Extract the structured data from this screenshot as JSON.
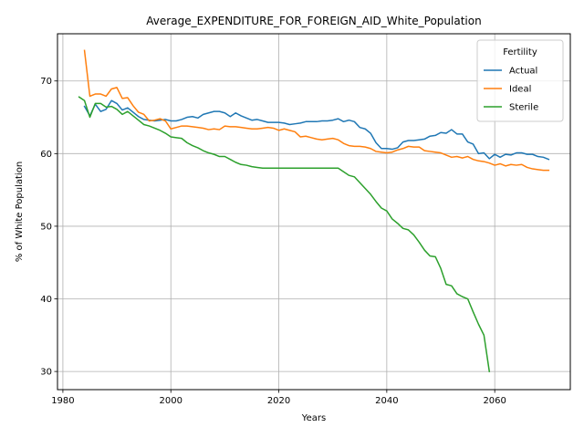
{
  "chart_data": {
    "type": "line",
    "title": "Average_EXPENDITURE_FOR_FOREIGN_AID_White_Population",
    "xlabel": "Years",
    "ylabel": "% of White Population",
    "xlim": [
      1979,
      2074
    ],
    "ylim": [
      27.5,
      76.5
    ],
    "xticks": [
      1980,
      2000,
      2020,
      2040,
      2060
    ],
    "yticks": [
      30,
      40,
      50,
      60,
      70
    ],
    "grid": true,
    "legend": {
      "title": "Fertility",
      "placement": "top-right"
    },
    "series": [
      {
        "name": "Actual",
        "color": "#1f77b4",
        "points": [
          [
            1984,
            66.5
          ],
          [
            1985,
            65.2
          ],
          [
            1986,
            66.8
          ],
          [
            1987,
            65.8
          ],
          [
            1988,
            66.1
          ],
          [
            1989,
            67.3
          ],
          [
            1990,
            66.9
          ],
          [
            1991,
            66.0
          ],
          [
            1992,
            66.3
          ],
          [
            1993,
            65.7
          ],
          [
            1994,
            65.1
          ],
          [
            1995,
            64.7
          ],
          [
            1996,
            64.6
          ],
          [
            1997,
            64.5
          ],
          [
            1998,
            64.6
          ],
          [
            1999,
            64.7
          ],
          [
            2000,
            64.5
          ],
          [
            2001,
            64.5
          ],
          [
            2002,
            64.7
          ],
          [
            2003,
            65.0
          ],
          [
            2004,
            65.1
          ],
          [
            2005,
            64.9
          ],
          [
            2006,
            65.4
          ],
          [
            2007,
            65.6
          ],
          [
            2008,
            65.8
          ],
          [
            2009,
            65.8
          ],
          [
            2010,
            65.6
          ],
          [
            2011,
            65.1
          ],
          [
            2012,
            65.6
          ],
          [
            2013,
            65.2
          ],
          [
            2014,
            64.9
          ],
          [
            2015,
            64.6
          ],
          [
            2016,
            64.7
          ],
          [
            2017,
            64.5
          ],
          [
            2018,
            64.3
          ],
          [
            2019,
            64.3
          ],
          [
            2020,
            64.3
          ],
          [
            2021,
            64.2
          ],
          [
            2022,
            64.0
          ],
          [
            2023,
            64.1
          ],
          [
            2024,
            64.2
          ],
          [
            2025,
            64.4
          ],
          [
            2026,
            64.4
          ],
          [
            2027,
            64.4
          ],
          [
            2028,
            64.5
          ],
          [
            2029,
            64.5
          ],
          [
            2030,
            64.6
          ],
          [
            2031,
            64.8
          ],
          [
            2032,
            64.4
          ],
          [
            2033,
            64.6
          ],
          [
            2034,
            64.4
          ],
          [
            2035,
            63.6
          ],
          [
            2036,
            63.4
          ],
          [
            2037,
            62.8
          ],
          [
            2038,
            61.5
          ],
          [
            2039,
            60.7
          ],
          [
            2040,
            60.7
          ],
          [
            2041,
            60.6
          ],
          [
            2042,
            60.8
          ],
          [
            2043,
            61.6
          ],
          [
            2044,
            61.8
          ],
          [
            2045,
            61.8
          ],
          [
            2046,
            61.9
          ],
          [
            2047,
            62.0
          ],
          [
            2048,
            62.4
          ],
          [
            2049,
            62.5
          ],
          [
            2050,
            62.9
          ],
          [
            2051,
            62.8
          ],
          [
            2052,
            63.3
          ],
          [
            2053,
            62.7
          ],
          [
            2054,
            62.7
          ],
          [
            2055,
            61.6
          ],
          [
            2056,
            61.3
          ],
          [
            2057,
            60.0
          ],
          [
            2058,
            60.1
          ],
          [
            2059,
            59.3
          ],
          [
            2060,
            59.9
          ],
          [
            2061,
            59.5
          ],
          [
            2062,
            59.9
          ],
          [
            2063,
            59.8
          ],
          [
            2064,
            60.1
          ],
          [
            2065,
            60.1
          ],
          [
            2066,
            59.9
          ],
          [
            2067,
            59.9
          ],
          [
            2068,
            59.6
          ],
          [
            2069,
            59.5
          ],
          [
            2070,
            59.2
          ]
        ]
      },
      {
        "name": "Ideal",
        "color": "#ff7f0e",
        "points": [
          [
            1984,
            74.2
          ],
          [
            1985,
            67.9
          ],
          [
            1986,
            68.2
          ],
          [
            1987,
            68.2
          ],
          [
            1988,
            67.9
          ],
          [
            1989,
            68.9
          ],
          [
            1990,
            69.1
          ],
          [
            1991,
            67.6
          ],
          [
            1992,
            67.7
          ],
          [
            1993,
            66.6
          ],
          [
            1994,
            65.7
          ],
          [
            1995,
            65.4
          ],
          [
            1996,
            64.5
          ],
          [
            1997,
            64.6
          ],
          [
            1998,
            64.8
          ],
          [
            1999,
            64.5
          ],
          [
            2000,
            63.4
          ],
          [
            2001,
            63.6
          ],
          [
            2002,
            63.8
          ],
          [
            2003,
            63.8
          ],
          [
            2004,
            63.7
          ],
          [
            2005,
            63.6
          ],
          [
            2006,
            63.5
          ],
          [
            2007,
            63.3
          ],
          [
            2008,
            63.4
          ],
          [
            2009,
            63.3
          ],
          [
            2010,
            63.8
          ],
          [
            2011,
            63.7
          ],
          [
            2012,
            63.7
          ],
          [
            2013,
            63.6
          ],
          [
            2014,
            63.5
          ],
          [
            2015,
            63.4
          ],
          [
            2016,
            63.4
          ],
          [
            2017,
            63.5
          ],
          [
            2018,
            63.6
          ],
          [
            2019,
            63.5
          ],
          [
            2020,
            63.2
          ],
          [
            2021,
            63.4
          ],
          [
            2022,
            63.2
          ],
          [
            2023,
            63.0
          ],
          [
            2024,
            62.3
          ],
          [
            2025,
            62.4
          ],
          [
            2026,
            62.2
          ],
          [
            2027,
            62.0
          ],
          [
            2028,
            61.9
          ],
          [
            2029,
            62.0
          ],
          [
            2030,
            62.1
          ],
          [
            2031,
            61.9
          ],
          [
            2032,
            61.4
          ],
          [
            2033,
            61.1
          ],
          [
            2034,
            61.0
          ],
          [
            2035,
            61.0
          ],
          [
            2036,
            60.9
          ],
          [
            2037,
            60.7
          ],
          [
            2038,
            60.3
          ],
          [
            2039,
            60.2
          ],
          [
            2040,
            60.1
          ],
          [
            2041,
            60.2
          ],
          [
            2042,
            60.5
          ],
          [
            2043,
            60.7
          ],
          [
            2044,
            61.0
          ],
          [
            2045,
            60.9
          ],
          [
            2046,
            60.9
          ],
          [
            2047,
            60.4
          ],
          [
            2048,
            60.3
          ],
          [
            2049,
            60.2
          ],
          [
            2050,
            60.1
          ],
          [
            2051,
            59.8
          ],
          [
            2052,
            59.5
          ],
          [
            2053,
            59.6
          ],
          [
            2054,
            59.4
          ],
          [
            2055,
            59.6
          ],
          [
            2056,
            59.2
          ],
          [
            2057,
            59.0
          ],
          [
            2058,
            58.9
          ],
          [
            2059,
            58.7
          ],
          [
            2060,
            58.4
          ],
          [
            2061,
            58.6
          ],
          [
            2062,
            58.3
          ],
          [
            2063,
            58.5
          ],
          [
            2064,
            58.4
          ],
          [
            2065,
            58.5
          ],
          [
            2066,
            58.1
          ],
          [
            2067,
            57.9
          ],
          [
            2068,
            57.8
          ],
          [
            2069,
            57.7
          ],
          [
            2070,
            57.7
          ]
        ]
      },
      {
        "name": "Sterile",
        "color": "#2ca02c",
        "points": [
          [
            1983,
            67.8
          ],
          [
            1984,
            67.3
          ],
          [
            1985,
            65.0
          ],
          [
            1986,
            66.9
          ],
          [
            1987,
            66.9
          ],
          [
            1988,
            66.4
          ],
          [
            1989,
            66.5
          ],
          [
            1990,
            66.1
          ],
          [
            1991,
            65.4
          ],
          [
            1992,
            65.8
          ],
          [
            1993,
            65.2
          ],
          [
            1994,
            64.6
          ],
          [
            1995,
            64.0
          ],
          [
            1996,
            63.8
          ],
          [
            1997,
            63.5
          ],
          [
            1998,
            63.2
          ],
          [
            1999,
            62.8
          ],
          [
            2000,
            62.3
          ],
          [
            2001,
            62.2
          ],
          [
            2002,
            62.1
          ],
          [
            2003,
            61.5
          ],
          [
            2004,
            61.1
          ],
          [
            2005,
            60.8
          ],
          [
            2006,
            60.4
          ],
          [
            2007,
            60.1
          ],
          [
            2008,
            59.9
          ],
          [
            2009,
            59.6
          ],
          [
            2010,
            59.6
          ],
          [
            2011,
            59.2
          ],
          [
            2012,
            58.8
          ],
          [
            2013,
            58.5
          ],
          [
            2014,
            58.4
          ],
          [
            2015,
            58.2
          ],
          [
            2016,
            58.1
          ],
          [
            2017,
            58.0
          ],
          [
            2018,
            58.0
          ],
          [
            2019,
            58.0
          ],
          [
            2020,
            58.0
          ],
          [
            2021,
            58.0
          ],
          [
            2022,
            58.0
          ],
          [
            2023,
            58.0
          ],
          [
            2024,
            58.0
          ],
          [
            2025,
            58.0
          ],
          [
            2026,
            58.0
          ],
          [
            2027,
            58.0
          ],
          [
            2028,
            58.0
          ],
          [
            2029,
            58.0
          ],
          [
            2030,
            58.0
          ],
          [
            2031,
            58.0
          ],
          [
            2032,
            57.5
          ],
          [
            2033,
            57.0
          ],
          [
            2034,
            56.8
          ],
          [
            2035,
            56.0
          ],
          [
            2036,
            55.2
          ],
          [
            2037,
            54.4
          ],
          [
            2038,
            53.4
          ],
          [
            2039,
            52.5
          ],
          [
            2040,
            52.1
          ],
          [
            2041,
            51.0
          ],
          [
            2042,
            50.4
          ],
          [
            2043,
            49.7
          ],
          [
            2044,
            49.5
          ],
          [
            2045,
            48.8
          ],
          [
            2046,
            47.8
          ],
          [
            2047,
            46.7
          ],
          [
            2048,
            45.9
          ],
          [
            2049,
            45.8
          ],
          [
            2050,
            44.2
          ],
          [
            2051,
            42.0
          ],
          [
            2052,
            41.8
          ],
          [
            2053,
            40.7
          ],
          [
            2054,
            40.3
          ],
          [
            2055,
            40.0
          ],
          [
            2056,
            38.2
          ],
          [
            2057,
            36.5
          ],
          [
            2058,
            35.0
          ],
          [
            2059,
            30.0
          ]
        ]
      }
    ]
  }
}
